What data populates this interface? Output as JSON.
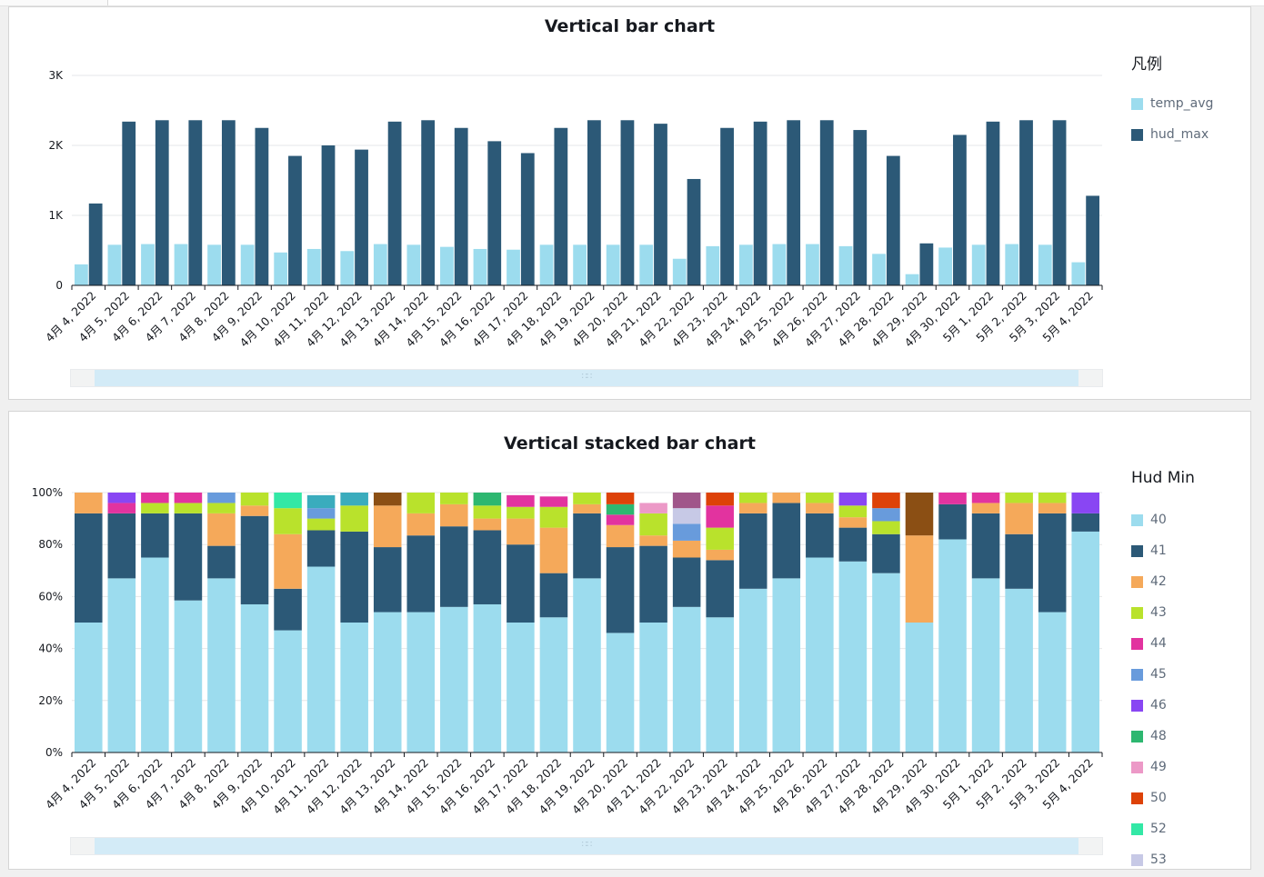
{
  "colors": {
    "temp_avg": "#9cdcee",
    "hud_max": "#2c5977",
    "grid": "#e6e7e8",
    "axis": "#16191f",
    "tick_text": "#16191f"
  },
  "chart_data": [
    {
      "type": "bar",
      "title": "Vertical bar chart",
      "xlabel": "",
      "ylabel": "",
      "ylim": [
        0,
        3000
      ],
      "yticks": [
        {
          "v": 0,
          "label": "0"
        },
        {
          "v": 1000,
          "label": "1K"
        },
        {
          "v": 2000,
          "label": "2K"
        },
        {
          "v": 3000,
          "label": "3K"
        }
      ],
      "grid": true,
      "legend_title": "凡例",
      "legend_position": "right",
      "categories": [
        "4月 4, 2022",
        "4月 5, 2022",
        "4月 6, 2022",
        "4月 7, 2022",
        "4月 8, 2022",
        "4月 9, 2022",
        "4月 10, 2022",
        "4月 11, 2022",
        "4月 12, 2022",
        "4月 13, 2022",
        "4月 14, 2022",
        "4月 15, 2022",
        "4月 16, 2022",
        "4月 17, 2022",
        "4月 18, 2022",
        "4月 19, 2022",
        "4月 20, 2022",
        "4月 21, 2022",
        "4月 22, 2022",
        "4月 23, 2022",
        "4月 24, 2022",
        "4月 25, 2022",
        "4月 26, 2022",
        "4月 27, 2022",
        "4月 28, 2022",
        "4月 29, 2022",
        "4月 30, 2022",
        "5月 1, 2022",
        "5月 2, 2022",
        "5月 3, 2022",
        "5月 4, 2022"
      ],
      "series": [
        {
          "name": "temp_avg",
          "color": "#9cdcee",
          "values": [
            300,
            580,
            590,
            590,
            580,
            580,
            470,
            520,
            490,
            590,
            580,
            550,
            520,
            510,
            580,
            580,
            580,
            580,
            380,
            560,
            580,
            590,
            590,
            560,
            450,
            160,
            540,
            580,
            590,
            580,
            330
          ]
        },
        {
          "name": "hud_max",
          "color": "#2c5977",
          "values": [
            1170,
            2340,
            2360,
            2360,
            2360,
            2250,
            1850,
            2000,
            1940,
            2340,
            2360,
            2250,
            2060,
            1890,
            2250,
            2360,
            2360,
            2310,
            1520,
            2250,
            2340,
            2360,
            2360,
            2220,
            1850,
            600,
            2150,
            2340,
            2360,
            2360,
            1280
          ]
        }
      ]
    },
    {
      "type": "bar",
      "stacked": "percent",
      "title": "Vertical stacked bar chart",
      "xlabel": "",
      "ylabel": "",
      "ylim": [
        0,
        100
      ],
      "yticks": [
        {
          "v": 0,
          "label": "0%"
        },
        {
          "v": 20,
          "label": "20%"
        },
        {
          "v": 40,
          "label": "40%"
        },
        {
          "v": 60,
          "label": "60%"
        },
        {
          "v": 80,
          "label": "80%"
        },
        {
          "v": 100,
          "label": "100%"
        }
      ],
      "grid": true,
      "legend_title": "Hud Min",
      "legend_position": "right",
      "categories": [
        "4月 4, 2022",
        "4月 5, 2022",
        "4月 6, 2022",
        "4月 7, 2022",
        "4月 8, 2022",
        "4月 9, 2022",
        "4月 10, 2022",
        "4月 11, 2022",
        "4月 12, 2022",
        "4月 13, 2022",
        "4月 14, 2022",
        "4月 15, 2022",
        "4月 16, 2022",
        "4月 17, 2022",
        "4月 18, 2022",
        "4月 19, 2022",
        "4月 20, 2022",
        "4月 21, 2022",
        "4月 22, 2022",
        "4月 23, 2022",
        "4月 24, 2022",
        "4月 25, 2022",
        "4月 26, 2022",
        "4月 27, 2022",
        "4月 28, 2022",
        "4月 29, 2022",
        "4月 30, 2022",
        "5月 1, 2022",
        "5月 2, 2022",
        "5月 3, 2022",
        "5月 4, 2022"
      ],
      "series": [
        {
          "name": "40",
          "color": "#9cdcee",
          "values": [
            50,
            67,
            75,
            58.5,
            67,
            57,
            47,
            71.5,
            50,
            54,
            54,
            56,
            57,
            50,
            52,
            67,
            46,
            50,
            56,
            52,
            63,
            67,
            75,
            73.5,
            69,
            50,
            82,
            67,
            63,
            54,
            85
          ]
        },
        {
          "name": "41",
          "color": "#2c5977",
          "values": [
            42,
            25,
            17,
            33.5,
            12.5,
            34,
            16,
            14,
            35,
            25,
            29.5,
            31,
            28.5,
            30,
            17,
            25,
            33,
            29.5,
            19,
            22,
            29,
            29,
            17,
            13,
            15,
            0,
            13.5,
            25,
            21,
            38,
            7
          ]
        },
        {
          "name": "42",
          "color": "#f5a95a",
          "values": [
            8,
            0,
            0,
            0,
            12.5,
            4,
            21,
            0,
            0,
            16,
            8.5,
            8.5,
            4.5,
            10,
            17.5,
            3.5,
            8.5,
            4,
            6.5,
            4,
            4,
            4,
            4,
            4,
            0,
            33.5,
            0,
            4,
            12,
            4,
            0
          ]
        },
        {
          "name": "43",
          "color": "#b9e22c",
          "values": [
            0,
            0,
            4,
            4,
            4,
            5,
            10,
            4.5,
            10,
            0,
            8,
            4.5,
            5,
            4.5,
            8,
            4.5,
            0,
            8.5,
            0,
            8.5,
            4,
            0,
            4,
            4.5,
            5,
            0,
            0,
            0,
            4,
            4,
            0
          ]
        },
        {
          "name": "44",
          "color": "#e2339f",
          "values": [
            0,
            4,
            4,
            4,
            0,
            0,
            0,
            0,
            0,
            0,
            0,
            0,
            0,
            4.5,
            4,
            0,
            4,
            0,
            0,
            8.5,
            0,
            0,
            0,
            0,
            0,
            0,
            4.5,
            4,
            0,
            0,
            0
          ]
        },
        {
          "name": "45",
          "color": "#689bdc",
          "values": [
            0,
            0,
            0,
            0,
            4,
            0,
            0,
            4,
            0,
            0,
            0,
            0,
            0,
            0,
            0,
            0,
            0,
            0,
            6.5,
            0,
            0,
            0,
            0,
            0,
            5,
            0,
            0,
            0,
            0,
            0,
            0
          ]
        },
        {
          "name": "46",
          "color": "#8946f3",
          "values": [
            0,
            4,
            0,
            0,
            0,
            0,
            0,
            0,
            0,
            0,
            0,
            0,
            0,
            0,
            0,
            0,
            0,
            0,
            0,
            0,
            0,
            0,
            0,
            5,
            0,
            0,
            0,
            0,
            0,
            0,
            8
          ]
        },
        {
          "name": "48",
          "color": "#2db770",
          "values": [
            0,
            0,
            0,
            0,
            0,
            0,
            0,
            0,
            0,
            0,
            0,
            0,
            5,
            0,
            0,
            0,
            4,
            0,
            0,
            0,
            0,
            0,
            0,
            0,
            0,
            0,
            0,
            0,
            0,
            0,
            0
          ]
        },
        {
          "name": "49",
          "color": "#ec99c7",
          "values": [
            0,
            0,
            0,
            0,
            0,
            0,
            0,
            0,
            0,
            0,
            0,
            0,
            0,
            0,
            0,
            0,
            0,
            4,
            0,
            0,
            0,
            0,
            0,
            0,
            0,
            0,
            0,
            0,
            0,
            0,
            0
          ]
        },
        {
          "name": "50",
          "color": "#dd4208",
          "values": [
            0,
            0,
            0,
            0,
            0,
            0,
            0,
            0,
            0,
            0,
            0,
            0,
            0,
            0,
            0,
            0,
            4.5,
            0,
            0,
            5,
            0,
            0,
            0,
            0,
            6,
            0,
            0,
            0,
            0,
            0,
            0
          ]
        },
        {
          "name": "52",
          "color": "#33e8a6",
          "values": [
            0,
            0,
            0,
            0,
            0,
            0,
            6,
            0,
            0,
            0,
            0,
            0,
            0,
            0,
            0,
            0,
            0,
            0,
            0,
            0,
            0,
            0,
            0,
            0,
            0,
            0,
            0,
            0,
            0,
            0,
            0
          ]
        },
        {
          "name": "53",
          "color": "#c7c9e6",
          "values": [
            0,
            0,
            0,
            0,
            0,
            0,
            0,
            0,
            0,
            0,
            0,
            0,
            0,
            0,
            0,
            0,
            0,
            0,
            6,
            0,
            0,
            0,
            0,
            0,
            0,
            0,
            0,
            0,
            0,
            0,
            0
          ]
        },
        {
          "name": "",
          "color": "#a0568a",
          "values": [
            0,
            0,
            0,
            0,
            0,
            0,
            0,
            0,
            0,
            0,
            0,
            0,
            0,
            0,
            0,
            0,
            0,
            0,
            6,
            0,
            0,
            0,
            0,
            0,
            0,
            0,
            0,
            0,
            0,
            0,
            0
          ]
        },
        {
          "name": "",
          "color": "#3aacbd",
          "values": [
            0,
            0,
            0,
            0,
            0,
            0,
            0,
            5,
            5,
            0,
            0,
            0,
            0,
            0,
            0,
            0,
            0,
            0,
            0,
            0,
            0,
            0,
            0,
            0,
            0,
            0,
            0,
            0,
            0,
            0,
            0
          ]
        },
        {
          "name": "",
          "color": "#8b4f14",
          "values": [
            0,
            0,
            0,
            0,
            0,
            0,
            0,
            0,
            0,
            5,
            0,
            0,
            0,
            0,
            0,
            0,
            0,
            0,
            0,
            0,
            0,
            0,
            0,
            0,
            0,
            16.5,
            0,
            0,
            0,
            0,
            0
          ]
        }
      ]
    }
  ]
}
